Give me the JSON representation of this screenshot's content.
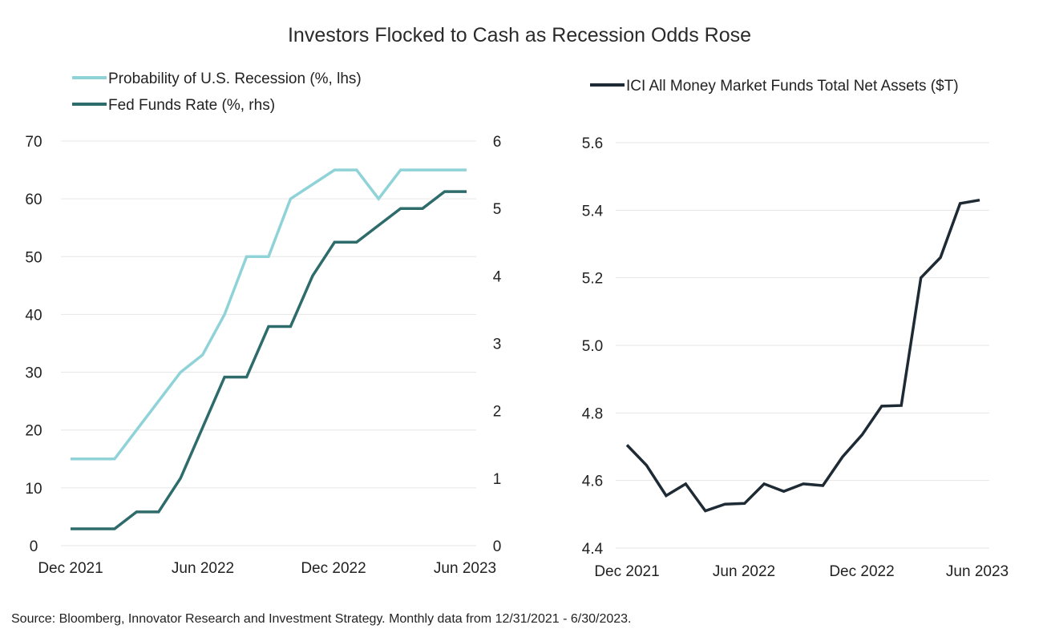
{
  "title": "Investors Flocked to Cash as Recession Odds Rose",
  "source": "Source: Bloomberg, Innovator Research and Investment Strategy. Monthly data from 12/31/2021 - 6/30/2023.",
  "colors": {
    "recession": "#8fd3d8",
    "fed": "#2e6b6b",
    "mmf": "#1e2b35",
    "grid": "#e6e6e6"
  },
  "chart_data": [
    {
      "type": "line",
      "x": [
        "2021-12",
        "2022-01",
        "2022-02",
        "2022-03",
        "2022-04",
        "2022-05",
        "2022-06",
        "2022-07",
        "2022-08",
        "2022-09",
        "2022-10",
        "2022-11",
        "2022-12",
        "2023-01",
        "2023-02",
        "2023-03",
        "2023-04",
        "2023-05",
        "2023-06"
      ],
      "x_ticks": [
        "Dec 2021",
        "Jun 2022",
        "Dec 2022",
        "Jun 2023"
      ],
      "x_tick_index": [
        0,
        6,
        12,
        18
      ],
      "series": [
        {
          "name": "Probability of  U.S. Recession (%, lhs)",
          "axis": "left",
          "values": [
            15,
            15,
            15,
            20,
            25,
            30,
            33,
            40,
            50,
            50,
            60,
            62.5,
            65,
            65,
            60,
            65,
            65,
            65,
            65
          ]
        },
        {
          "name": "Fed Funds Rate (%, rhs)",
          "axis": "right",
          "values": [
            0.25,
            0.25,
            0.25,
            0.5,
            0.5,
            1.0,
            1.75,
            2.5,
            2.5,
            3.25,
            3.25,
            4.0,
            4.5,
            4.5,
            4.75,
            5.0,
            5.0,
            5.25,
            5.25
          ]
        }
      ],
      "y_left": {
        "range": [
          0,
          70
        ],
        "ticks": [
          "0",
          "10",
          "20",
          "30",
          "40",
          "50",
          "60",
          "70"
        ]
      },
      "y_right": {
        "range": [
          0,
          6
        ],
        "ticks": [
          "0",
          "1",
          "2",
          "3",
          "4",
          "5",
          "6"
        ]
      },
      "grid": "horizontal",
      "legend": "top-left"
    },
    {
      "type": "line",
      "x": [
        "2021-12",
        "2022-01",
        "2022-02",
        "2022-03",
        "2022-04",
        "2022-05",
        "2022-06",
        "2022-07",
        "2022-08",
        "2022-09",
        "2022-10",
        "2022-11",
        "2022-12",
        "2023-01",
        "2023-02",
        "2023-03",
        "2023-04",
        "2023-05",
        "2023-06"
      ],
      "x_ticks": [
        "Dec 2021",
        "Jun 2022",
        "Dec 2022",
        "Jun 2023"
      ],
      "x_tick_index": [
        0,
        6,
        12,
        18
      ],
      "series": [
        {
          "name": "ICI All Money Market Funds Total Net Assets ($T)",
          "values": [
            4.705,
            4.645,
            4.555,
            4.59,
            4.51,
            4.53,
            4.532,
            4.59,
            4.568,
            4.59,
            4.585,
            4.67,
            4.735,
            4.82,
            4.822,
            5.2,
            5.26,
            5.42,
            5.43
          ]
        }
      ],
      "y": {
        "range": [
          4.4,
          5.6
        ],
        "ticks": [
          "4.4",
          "4.6",
          "4.8",
          "5.0",
          "5.2",
          "5.4",
          "5.6"
        ]
      },
      "grid": "horizontal",
      "legend": "top"
    }
  ]
}
